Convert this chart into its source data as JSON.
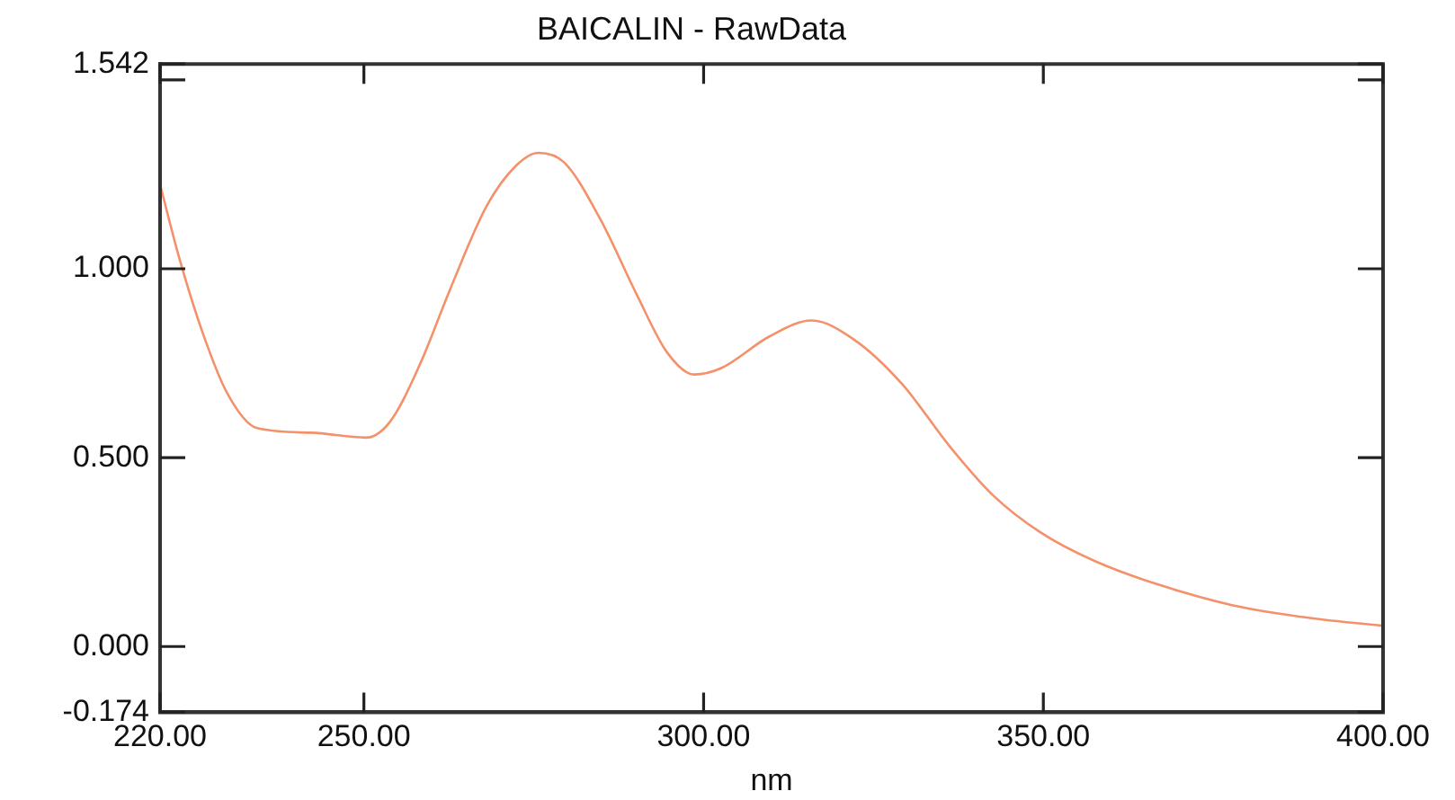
{
  "chart_data": {
    "type": "line",
    "title": "BAICALIN - RawData",
    "xlabel": "nm",
    "x": [
      220,
      222.8,
      226.3,
      229.9,
      234.3,
      242.3,
      250.3,
      253.8,
      258.2,
      262.7,
      268.0,
      272.4,
      275.7,
      279.5,
      284.8,
      290.2,
      294.6,
      298.6,
      302.6,
      309.7,
      315.9,
      322.1,
      329.2,
      336.3,
      342.5,
      349.6,
      357.6,
      366.4,
      377.9,
      389.5,
      400
    ],
    "series": [
      {
        "color": "#f4916b",
        "values": [
          1.223,
          1.03,
          0.829,
          0.67,
          0.578,
          0.566,
          0.553,
          0.594,
          0.745,
          0.946,
          1.164,
          1.273,
          1.307,
          1.281,
          1.131,
          0.93,
          0.779,
          0.72,
          0.737,
          0.821,
          0.863,
          0.813,
          0.695,
          0.528,
          0.402,
          0.302,
          0.226,
          0.167,
          0.109,
          0.075,
          0.055
        ]
      }
    ],
    "xlim": [
      220,
      400
    ],
    "xticks": [
      {
        "value": 220,
        "label": "220.00"
      },
      {
        "value": 250,
        "label": "250.00"
      },
      {
        "value": 300,
        "label": "300.00"
      },
      {
        "value": 350,
        "label": "350.00"
      },
      {
        "value": 400,
        "label": "400.00"
      }
    ],
    "ylim": [
      -0.174,
      1.542
    ],
    "yticks": [
      {
        "value": -0.174,
        "label": "-0.174"
      },
      {
        "value": 0,
        "label": "0.000"
      },
      {
        "value": 0.5,
        "label": "0.500"
      },
      {
        "value": 1,
        "label": "1.000"
      },
      {
        "value": 1.5,
        "label": null
      },
      {
        "value": 1.542,
        "label": "1.542"
      }
    ],
    "marker": "none",
    "line_style": "solid",
    "legend": false
  }
}
